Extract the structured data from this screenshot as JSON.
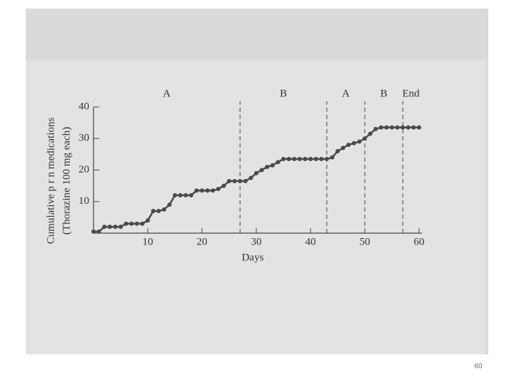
{
  "chart_data": {
    "type": "line",
    "y_label_lines": [
      "Cumulative p r n medications",
      "(Thorazine 100 mg each)"
    ],
    "x_label": "Days",
    "x": [
      0,
      1,
      2,
      3,
      4,
      5,
      6,
      7,
      8,
      9,
      10,
      11,
      12,
      13,
      14,
      15,
      16,
      17,
      18,
      19,
      20,
      21,
      22,
      23,
      24,
      25,
      26,
      27,
      28,
      29,
      30,
      31,
      32,
      33,
      34,
      35,
      36,
      37,
      38,
      39,
      40,
      41,
      42,
      43,
      44,
      45,
      46,
      47,
      48,
      49,
      50,
      51,
      52,
      53,
      54,
      55,
      56,
      57,
      58,
      59,
      60
    ],
    "series": [
      {
        "color": "#4a4a4a",
        "values": [
          0.5,
          0.5,
          2,
          2,
          2,
          2,
          3,
          3,
          3,
          3,
          4,
          7,
          7,
          7.5,
          9,
          12,
          12,
          12,
          12,
          13.5,
          13.5,
          13.5,
          13.5,
          14,
          15,
          16.5,
          16.5,
          16.5,
          16.5,
          17.5,
          19,
          20,
          21,
          21.5,
          22.5,
          23.5,
          23.5,
          23.5,
          23.5,
          23.5,
          23.5,
          23.5,
          23.5,
          23.5,
          24,
          26,
          27,
          28,
          28.5,
          29,
          30,
          31.5,
          33,
          33.5,
          33.5,
          33.5,
          33.5,
          33.5,
          33.5,
          33.5,
          33.5
        ]
      }
    ],
    "xlim": [
      0,
      60
    ],
    "ylim": [
      0,
      40
    ],
    "xticks": [
      10,
      20,
      30,
      40,
      50,
      60
    ],
    "yticks": [
      10,
      20,
      30,
      40
    ],
    "phase_lines": [
      27,
      43,
      50,
      57
    ],
    "phase_labels": [
      "A",
      "B",
      "A",
      "B",
      "End"
    ],
    "page_number": "60"
  }
}
